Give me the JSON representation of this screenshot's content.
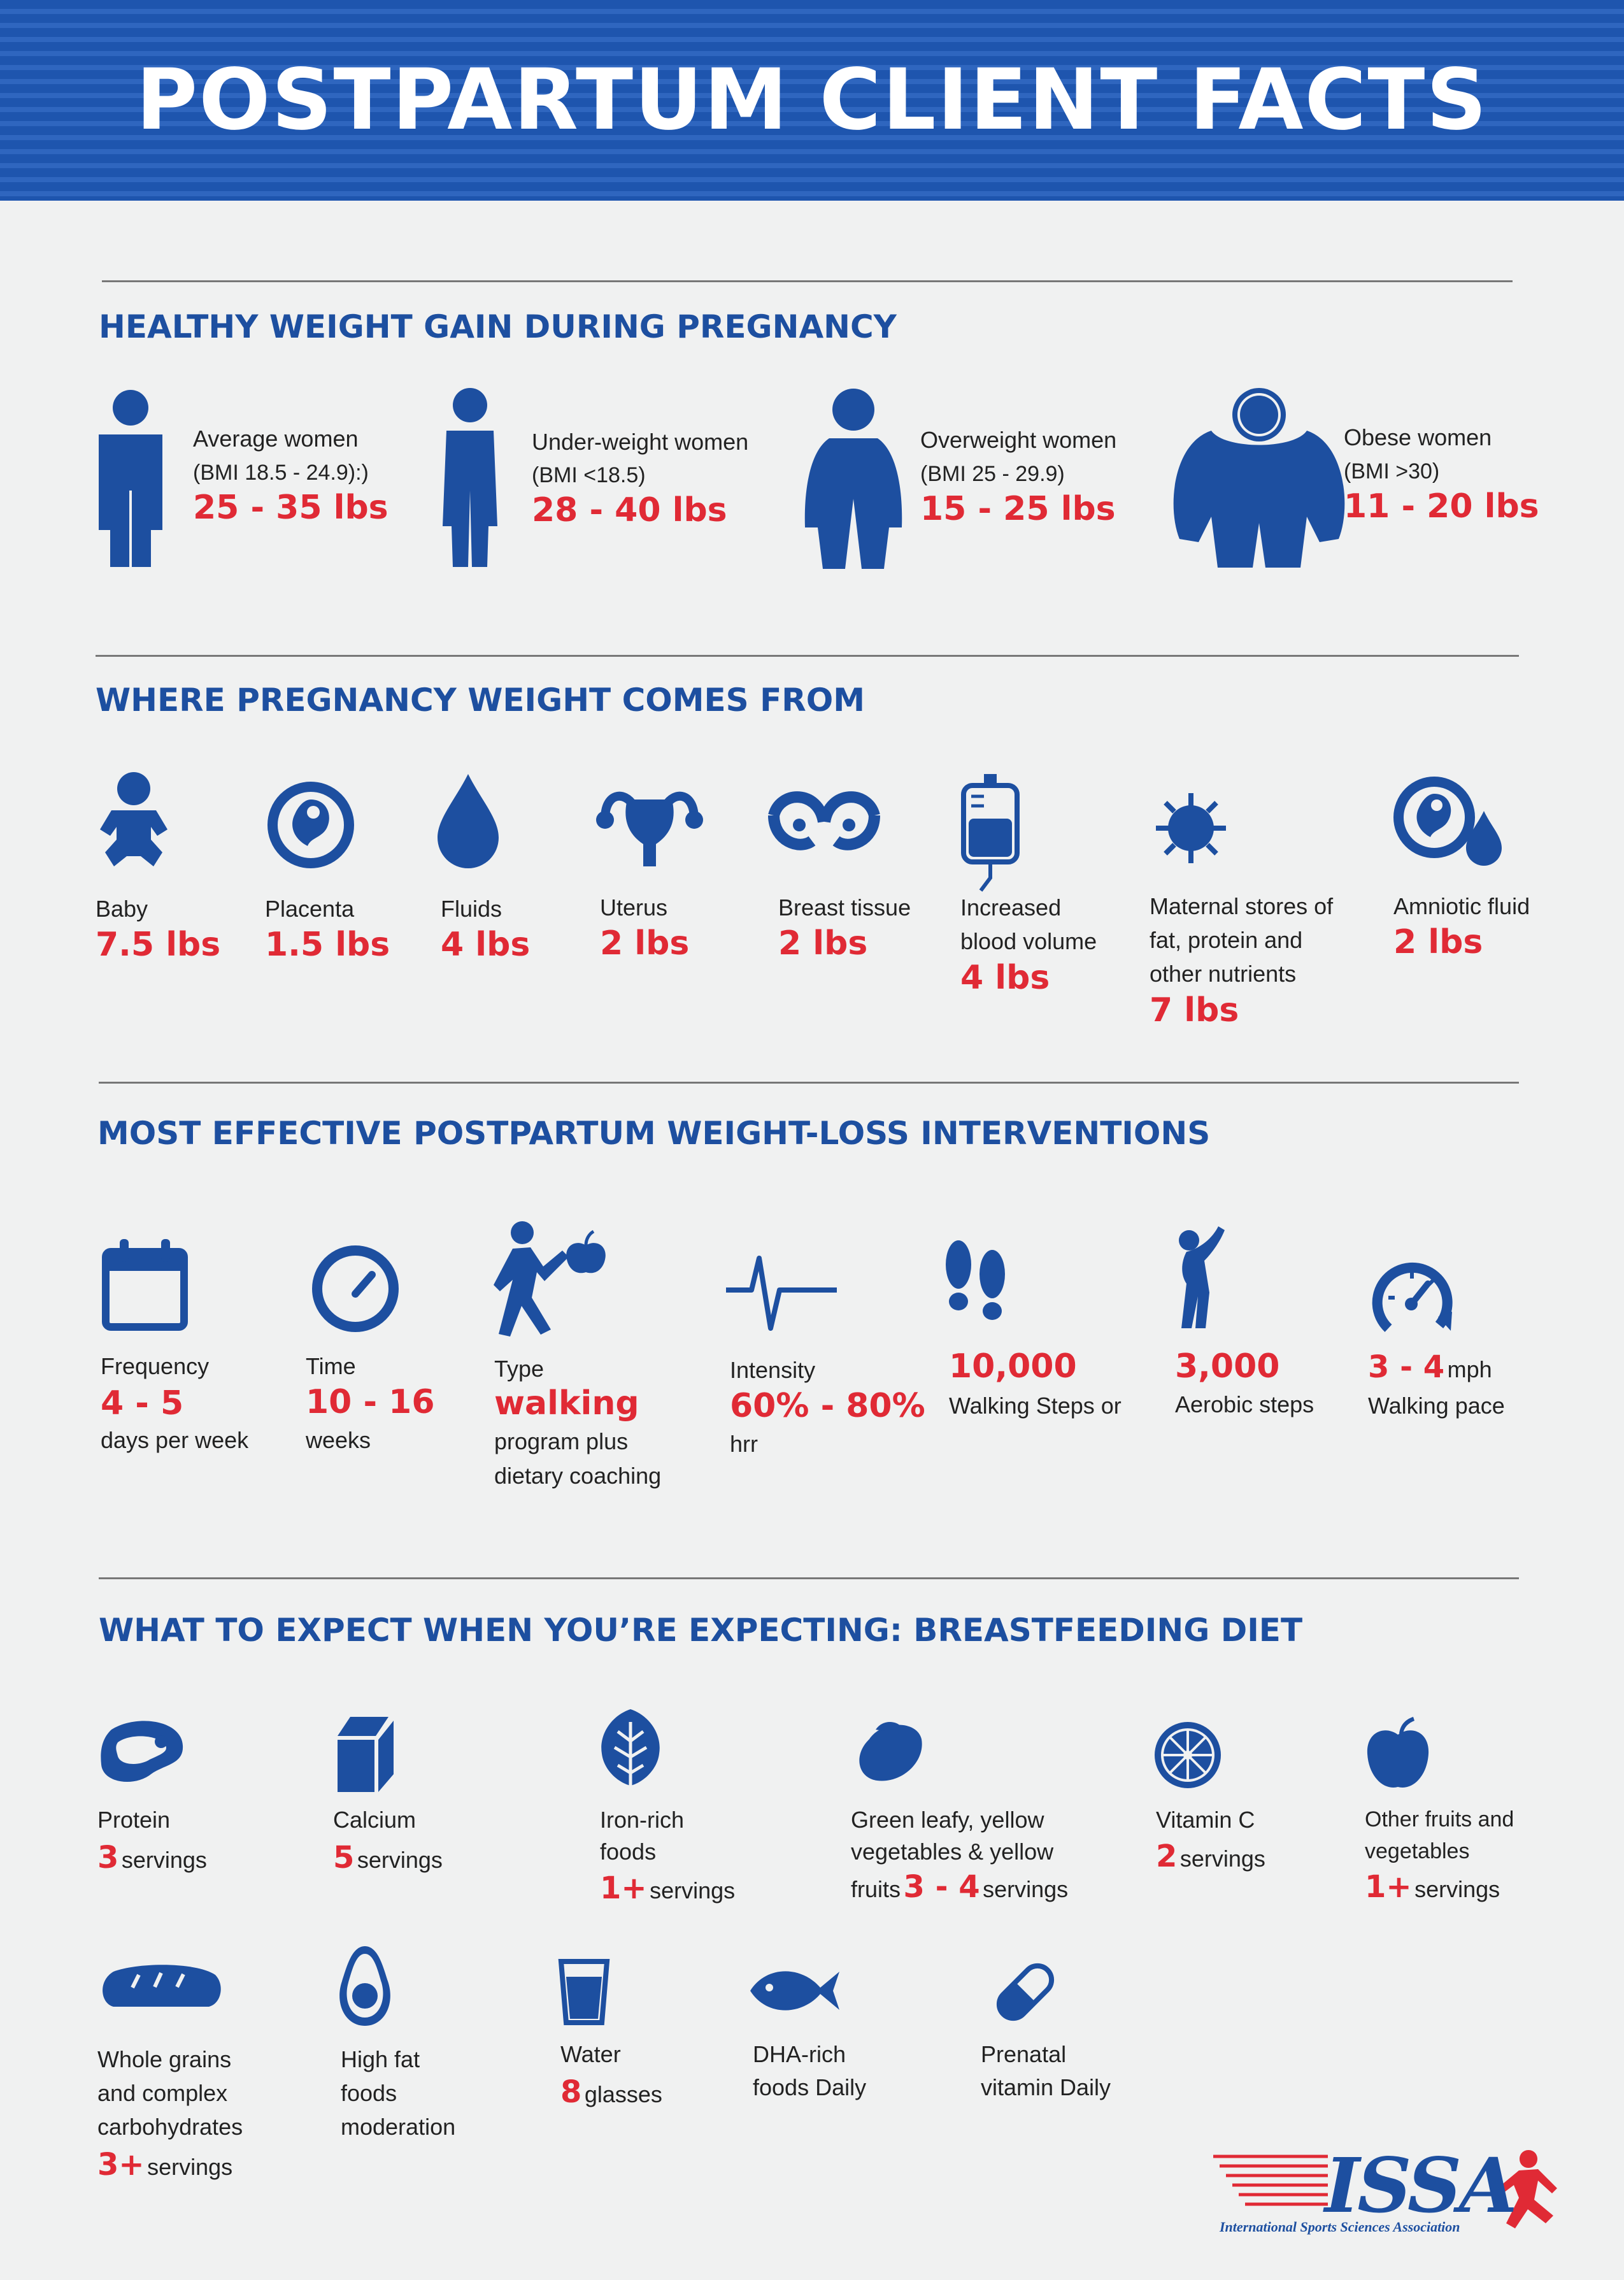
{
  "title": "POSTPARTUM CLIENT FACTS",
  "sections": {
    "weight_gain": {
      "title": "HEALTHY WEIGHT GAIN DURING PREGNANCY",
      "items": [
        {
          "label": "Average women",
          "bmi": "(BMI 18.5 - 24.9):)",
          "value": "25 - 35 lbs",
          "icon": "average-woman-icon"
        },
        {
          "label": "Under-weight women",
          "bmi": "(BMI <18.5)",
          "value": "28 - 40 lbs",
          "icon": "underweight-woman-icon"
        },
        {
          "label": "Overweight women",
          "bmi": "(BMI 25 - 29.9)",
          "value": "15 - 25 lbs",
          "icon": "overweight-woman-icon"
        },
        {
          "label": "Obese women",
          "bmi": "(BMI >30)",
          "value": "11 - 20 lbs",
          "icon": "obese-woman-icon"
        }
      ]
    },
    "weight_source": {
      "title": "WHERE PREGNANCY WEIGHT COMES FROM",
      "items": [
        {
          "label": "Baby",
          "value": "7.5 lbs",
          "icon": "baby-icon"
        },
        {
          "label": "Placenta",
          "value": "1.5 lbs",
          "icon": "placenta-icon"
        },
        {
          "label": "Fluids",
          "value": "4 lbs",
          "icon": "fluid-drop-icon"
        },
        {
          "label": "Uterus",
          "value": "2 lbs",
          "icon": "uterus-icon"
        },
        {
          "label": "Breast tissue",
          "value": "2 lbs",
          "icon": "breast-icon"
        },
        {
          "label_lines": [
            "Increased",
            "blood volume"
          ],
          "value": "4 lbs",
          "icon": "blood-bag-icon"
        },
        {
          "label_lines": [
            "Maternal stores of",
            "fat, protein and",
            "other nutrients"
          ],
          "value": "7 lbs",
          "icon": "cell-icon"
        },
        {
          "label": "Amniotic fluid",
          "value": "2 lbs",
          "icon": "amniotic-fluid-icon"
        }
      ]
    },
    "interventions": {
      "title": "MOST EFFECTIVE POSTPARTUM WEIGHT-LOSS INTERVENTIONS",
      "items": [
        {
          "label": "Frequency",
          "value": "4 - 5",
          "after": "days per week",
          "icon": "calendar-icon"
        },
        {
          "label": "Time",
          "value": "10 - 16",
          "after": "weeks",
          "icon": "clock-icon"
        },
        {
          "label": "Type",
          "value": "walking",
          "after_lines": [
            "program plus",
            "dietary coaching"
          ],
          "icon": "walker-apple-icon"
        },
        {
          "label": "Intensity",
          "value": "60% - 80%",
          "after": "hrr",
          "icon": "heartbeat-icon"
        },
        {
          "value": "10,000",
          "after": "Walking Steps or",
          "icon": "footprints-icon"
        },
        {
          "value": "3,000",
          "after": "Aerobic steps",
          "icon": "aerobic-figure-icon"
        },
        {
          "value": "3 - 4",
          "value_unit": "mph",
          "after": "Walking pace",
          "icon": "speedometer-icon"
        }
      ]
    },
    "diet": {
      "title": "WHAT TO EXPECT WHEN YOU’RE EXPECTING: BREASTFEEDING DIET",
      "row1": [
        {
          "label": "Protein",
          "num": "3",
          "unit": "servings",
          "icon": "steak-icon"
        },
        {
          "label": "Calcium",
          "num": "5",
          "unit": "servings",
          "icon": "milk-carton-icon"
        },
        {
          "label_lines": [
            "Iron-rich",
            "foods"
          ],
          "num": "1+",
          "unit": "servings",
          "icon": "leafy-green-icon"
        },
        {
          "label_lines": [
            "Green leafy, yellow",
            "vegetables & yellow"
          ],
          "prefix": "fruits",
          "num": "3 - 4",
          "unit": "servings",
          "icon": "mango-icon"
        },
        {
          "label": "Vitamin C",
          "num": "2",
          "unit": "servings",
          "icon": "citrus-icon"
        },
        {
          "label_lines": [
            "Other fruits and",
            "vegetables"
          ],
          "num": "1+",
          "unit": "servings",
          "icon": "apple-icon"
        }
      ],
      "row2": [
        {
          "label_lines": [
            "Whole grains",
            "and complex",
            "carbohydrates"
          ],
          "num": "3+",
          "unit": "servings",
          "icon": "bread-icon"
        },
        {
          "label_lines": [
            "High fat",
            "foods",
            "moderation"
          ],
          "icon": "avocado-icon"
        },
        {
          "label": "Water",
          "num": "8",
          "unit": "glasses",
          "icon": "water-glass-icon"
        },
        {
          "label_lines": [
            "DHA-rich",
            "foods Daily"
          ],
          "icon": "fish-icon"
        },
        {
          "label_lines": [
            "Prenatal",
            "vitamin Daily"
          ],
          "icon": "capsule-icon"
        }
      ]
    }
  },
  "logo": {
    "text": "ISSA",
    "tagline": "International Sports Sciences Association"
  },
  "colors": {
    "blue": "#1d4fa0",
    "red": "#e02a35",
    "background": "#f0f1f1"
  }
}
